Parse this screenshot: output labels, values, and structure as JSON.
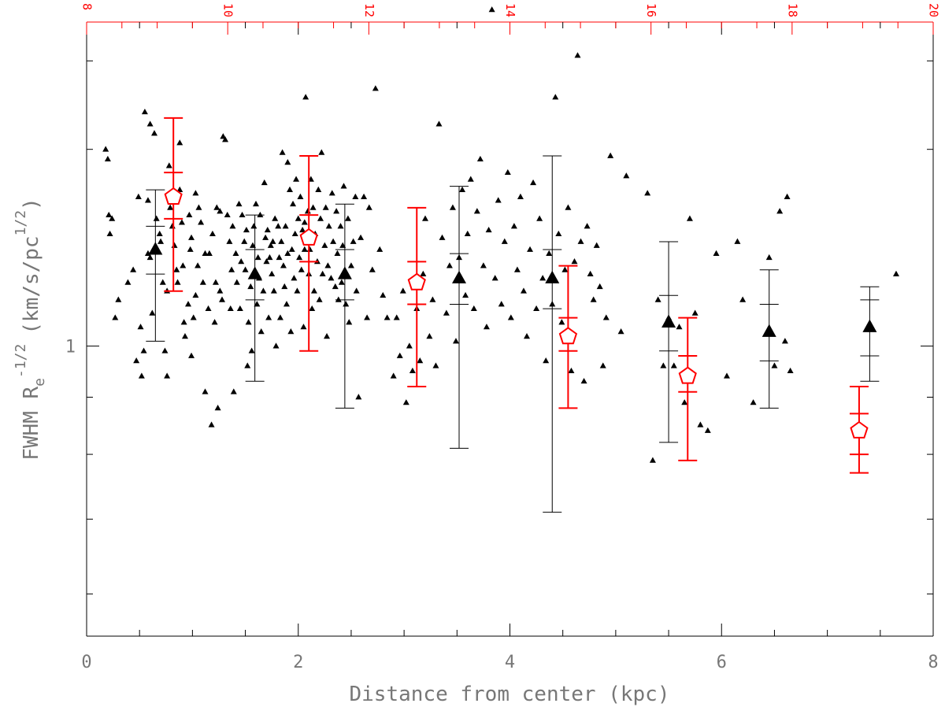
{
  "chart_data": {
    "type": "scatter",
    "xlabel": "Distance from center (kpc)",
    "ylabel": "FWHM R_e^{-1/2} (km/s/pc^{1/2})",
    "ylabel_parts": {
      "main": "FWHM R",
      "sub": "e",
      "sup1": "-1/2",
      "mid": "(km/s/pc",
      "sup2": "1/2",
      "end": ")"
    },
    "xlim": [
      0,
      8
    ],
    "ylim": [
      0.55,
      1.95
    ],
    "y_scale": "log",
    "x_ticks": [
      0,
      2,
      4,
      6,
      8
    ],
    "y_ticks": [
      1
    ],
    "top_axis": {
      "xlim": [
        8,
        20
      ],
      "ticks": [
        8,
        10,
        12,
        14,
        16,
        18,
        20
      ],
      "color": "#ff0000"
    },
    "colors": {
      "points": "#000000",
      "black_series": "#000000",
      "red_series": "#ff0000",
      "frame": "#000000",
      "text": "#777777"
    },
    "series": [
      {
        "marker": "triangle",
        "color": "#000000",
        "x": [
          0.65,
          1.59,
          2.44,
          3.52,
          4.4,
          5.5,
          6.45,
          7.4
        ],
        "y": [
          1.22,
          1.16,
          1.16,
          1.15,
          1.15,
          1.05,
          1.03,
          1.04
        ],
        "err_outer": [
          [
            1.01,
            1.38
          ],
          [
            0.93,
            1.31
          ],
          [
            0.88,
            1.34
          ],
          [
            0.81,
            1.39
          ],
          [
            0.71,
            1.48
          ],
          [
            0.82,
            1.24
          ],
          [
            0.88,
            1.17
          ],
          [
            0.93,
            1.13
          ]
        ],
        "err_inner": [
          [
            1.16,
            1.28
          ],
          [
            1.1,
            1.22
          ],
          [
            1.1,
            1.22
          ],
          [
            1.09,
            1.21
          ],
          [
            1.08,
            1.22
          ],
          [
            0.99,
            1.11
          ],
          [
            0.97,
            1.09
          ],
          [
            0.98,
            1.1
          ]
        ]
      },
      {
        "marker": "pentagon",
        "color": "#ff0000",
        "x": [
          0.82,
          2.1,
          3.12,
          4.55,
          5.68,
          7.3
        ],
        "y": [
          1.36,
          1.25,
          1.14,
          1.02,
          0.94,
          0.84
        ],
        "err_outer": [
          [
            1.12,
            1.6
          ],
          [
            0.99,
            1.48
          ],
          [
            0.92,
            1.33
          ],
          [
            0.88,
            1.18
          ],
          [
            0.79,
            1.06
          ],
          [
            0.77,
            0.92
          ]
        ],
        "err_inner": [
          [
            1.3,
            1.43
          ],
          [
            1.19,
            1.31
          ],
          [
            1.09,
            1.19
          ],
          [
            0.99,
            1.06
          ],
          [
            0.91,
            0.98
          ],
          [
            0.8,
            0.87
          ]
        ]
      }
    ],
    "points": [
      [
        0.18,
        1.5
      ],
      [
        0.2,
        1.47
      ],
      [
        0.21,
        1.31
      ],
      [
        0.22,
        1.26
      ],
      [
        0.24,
        1.3
      ],
      [
        0.27,
        1.06
      ],
      [
        0.3,
        1.1
      ],
      [
        0.39,
        1.14
      ],
      [
        0.44,
        1.17
      ],
      [
        0.47,
        0.97
      ],
      [
        0.49,
        1.36
      ],
      [
        0.51,
        1.04
      ],
      [
        0.52,
        0.94
      ],
      [
        0.54,
        0.99
      ],
      [
        0.55,
        1.62
      ],
      [
        0.58,
        1.35
      ],
      [
        0.58,
        1.21
      ],
      [
        0.6,
        1.2
      ],
      [
        0.62,
        1.07
      ],
      [
        0.6,
        1.58
      ],
      [
        0.64,
        1.55
      ],
      [
        0.66,
        1.3
      ],
      [
        0.69,
        1.26
      ],
      [
        0.7,
        1.24
      ],
      [
        0.72,
        1.14
      ],
      [
        0.74,
        0.99
      ],
      [
        0.76,
        1.12
      ],
      [
        0.76,
        0.94
      ],
      [
        0.78,
        1.45
      ],
      [
        0.79,
        1.33
      ],
      [
        0.81,
        1.28
      ],
      [
        0.83,
        1.23
      ],
      [
        0.85,
        1.17
      ],
      [
        0.86,
        1.14
      ],
      [
        0.88,
        1.38
      ],
      [
        0.88,
        1.52
      ],
      [
        0.9,
        1.29
      ],
      [
        0.91,
        1.18
      ],
      [
        0.92,
        1.05
      ],
      [
        0.93,
        1.02
      ],
      [
        0.96,
        1.09
      ],
      [
        0.97,
        1.31
      ],
      [
        0.98,
        1.22
      ],
      [
        0.99,
        1.25
      ],
      [
        0.99,
        0.98
      ],
      [
        1.01,
        1.06
      ],
      [
        1.03,
        1.11
      ],
      [
        1.03,
        1.37
      ],
      [
        1.05,
        1.18
      ],
      [
        1.06,
        1.33
      ],
      [
        1.08,
        1.29
      ],
      [
        1.1,
        1.14
      ],
      [
        1.12,
        1.21
      ],
      [
        1.12,
        0.91
      ],
      [
        1.15,
        1.08
      ],
      [
        1.16,
        1.21
      ],
      [
        1.18,
        0.85
      ],
      [
        1.19,
        1.26
      ],
      [
        1.21,
        1.05
      ],
      [
        1.22,
        1.14
      ],
      [
        1.23,
        1.33
      ],
      [
        1.24,
        0.88
      ],
      [
        1.26,
        1.12
      ],
      [
        1.26,
        1.32
      ],
      [
        1.28,
        1.1
      ],
      [
        1.29,
        1.54
      ],
      [
        1.31,
        1.53
      ],
      [
        1.33,
        1.31
      ],
      [
        1.35,
        1.24
      ],
      [
        1.36,
        1.08
      ],
      [
        1.37,
        1.17
      ],
      [
        1.38,
        1.28
      ],
      [
        1.39,
        0.91
      ],
      [
        1.41,
        1.21
      ],
      [
        1.42,
        1.14
      ],
      [
        1.44,
        1.34
      ],
      [
        1.45,
        1.08
      ],
      [
        1.46,
        1.19
      ],
      [
        1.47,
        1.31
      ],
      [
        1.49,
        1.24
      ],
      [
        1.5,
        1.17
      ],
      [
        1.51,
        1.27
      ],
      [
        1.52,
        0.96
      ],
      [
        1.53,
        1.05
      ],
      [
        1.55,
        1.13
      ],
      [
        1.56,
        0.99
      ],
      [
        1.57,
        1.23
      ],
      [
        1.58,
        1.28
      ],
      [
        1.6,
        1.34
      ],
      [
        1.61,
        1.09
      ],
      [
        1.62,
        1.2
      ],
      [
        1.63,
        1.15
      ],
      [
        1.64,
        1.31
      ],
      [
        1.65,
        1.03
      ],
      [
        1.67,
        1.12
      ],
      [
        1.68,
        1.4
      ],
      [
        1.69,
        1.25
      ],
      [
        1.7,
        1.19
      ],
      [
        1.71,
        1.27
      ],
      [
        1.72,
        1.06
      ],
      [
        1.73,
        1.2
      ],
      [
        1.74,
        1.23
      ],
      [
        1.75,
        1.16
      ],
      [
        1.76,
        1.24
      ],
      [
        1.77,
        1.12
      ],
      [
        1.78,
        1.3
      ],
      [
        1.79,
        1.0
      ],
      [
        1.81,
        1.28
      ],
      [
        1.82,
        1.2
      ],
      [
        1.83,
        1.06
      ],
      [
        1.84,
        1.24
      ],
      [
        1.85,
        1.49
      ],
      [
        1.86,
        1.18
      ],
      [
        1.87,
        1.13
      ],
      [
        1.88,
        1.28
      ],
      [
        1.89,
        1.09
      ],
      [
        1.9,
        1.21
      ],
      [
        1.9,
        1.46
      ],
      [
        1.92,
        1.38
      ],
      [
        1.93,
        1.03
      ],
      [
        1.94,
        1.22
      ],
      [
        1.95,
        1.34
      ],
      [
        1.96,
        1.15
      ],
      [
        1.97,
        1.26
      ],
      [
        1.98,
        1.41
      ],
      [
        1.99,
        1.12
      ],
      [
        2.0,
        1.3
      ],
      [
        2.01,
        1.2
      ],
      [
        2.02,
        1.36
      ],
      [
        2.03,
        1.17
      ],
      [
        2.04,
        1.27
      ],
      [
        2.05,
        1.04
      ],
      [
        2.06,
        1.29
      ],
      [
        2.06,
        1.22
      ],
      [
        2.07,
        1.67
      ],
      [
        2.09,
        1.32
      ],
      [
        2.1,
        1.16
      ],
      [
        2.11,
        1.22
      ],
      [
        2.12,
        1.41
      ],
      [
        2.13,
        1.08
      ],
      [
        2.14,
        1.33
      ],
      [
        2.15,
        1.12
      ],
      [
        2.16,
        1.26
      ],
      [
        2.18,
        1.19
      ],
      [
        2.19,
        1.38
      ],
      [
        2.2,
        1.1
      ],
      [
        2.21,
        1.3
      ],
      [
        2.22,
        1.49
      ],
      [
        2.23,
        1.16
      ],
      [
        2.25,
        1.23
      ],
      [
        2.26,
        1.33
      ],
      [
        2.27,
        1.02
      ],
      [
        2.28,
        1.18
      ],
      [
        2.29,
        1.28
      ],
      [
        2.31,
        1.15
      ],
      [
        2.32,
        1.37
      ],
      [
        2.33,
        1.24
      ],
      [
        2.35,
        1.13
      ],
      [
        2.36,
        1.32
      ],
      [
        2.37,
        1.21
      ],
      [
        2.38,
        1.1
      ],
      [
        2.4,
        1.28
      ],
      [
        2.41,
        1.14
      ],
      [
        2.42,
        1.23
      ],
      [
        2.43,
        1.39
      ],
      [
        2.45,
        1.09
      ],
      [
        2.47,
        1.3
      ],
      [
        2.48,
        1.05
      ],
      [
        2.5,
        1.18
      ],
      [
        2.52,
        1.24
      ],
      [
        2.54,
        1.36
      ],
      [
        2.55,
        1.12
      ],
      [
        2.57,
        0.9
      ],
      [
        2.59,
        1.25
      ],
      [
        2.62,
        1.36
      ],
      [
        2.65,
        1.06
      ],
      [
        2.67,
        1.33
      ],
      [
        2.7,
        1.17
      ],
      [
        2.73,
        1.7
      ],
      [
        2.77,
        1.22
      ],
      [
        2.8,
        1.11
      ],
      [
        2.84,
        1.06
      ],
      [
        2.9,
        0.94
      ],
      [
        2.93,
        1.06
      ],
      [
        2.96,
        0.98
      ],
      [
        2.99,
        1.12
      ],
      [
        3.02,
        0.89
      ],
      [
        3.05,
        1.0
      ],
      [
        3.08,
        0.95
      ],
      [
        3.12,
        1.08
      ],
      [
        3.15,
        0.97
      ],
      [
        3.18,
        1.16
      ],
      [
        3.2,
        1.3
      ],
      [
        3.24,
        1.02
      ],
      [
        3.27,
        1.1
      ],
      [
        3.3,
        0.96
      ],
      [
        3.33,
        1.58
      ],
      [
        3.36,
        1.25
      ],
      [
        3.4,
        1.07
      ],
      [
        3.43,
        1.18
      ],
      [
        3.46,
        1.33
      ],
      [
        3.49,
        1.01
      ],
      [
        3.52,
        1.2
      ],
      [
        3.55,
        1.38
      ],
      [
        3.58,
        1.11
      ],
      [
        3.6,
        1.26
      ],
      [
        3.63,
        1.41
      ],
      [
        3.66,
        1.08
      ],
      [
        3.69,
        1.32
      ],
      [
        3.72,
        1.47
      ],
      [
        3.75,
        1.18
      ],
      [
        3.78,
        1.04
      ],
      [
        3.8,
        1.27
      ],
      [
        3.83,
        2.0
      ],
      [
        3.86,
        1.15
      ],
      [
        3.89,
        1.35
      ],
      [
        3.92,
        1.09
      ],
      [
        3.95,
        1.24
      ],
      [
        3.98,
        1.43
      ],
      [
        4.01,
        1.06
      ],
      [
        4.04,
        1.28
      ],
      [
        4.07,
        1.17
      ],
      [
        4.1,
        1.36
      ],
      [
        4.13,
        1.12
      ],
      [
        4.16,
        1.02
      ],
      [
        4.19,
        1.22
      ],
      [
        4.22,
        1.4
      ],
      [
        4.25,
        1.08
      ],
      [
        4.28,
        1.3
      ],
      [
        4.31,
        1.15
      ],
      [
        4.34,
        0.97
      ],
      [
        4.37,
        1.21
      ],
      [
        4.4,
        1.09
      ],
      [
        4.43,
        1.67
      ],
      [
        4.46,
        1.26
      ],
      [
        4.49,
        1.05
      ],
      [
        4.52,
        1.17
      ],
      [
        4.55,
        1.33
      ],
      [
        4.58,
        0.95
      ],
      [
        4.61,
        1.19
      ],
      [
        4.64,
        1.82
      ],
      [
        4.67,
        1.24
      ],
      [
        4.7,
        0.93
      ],
      [
        4.73,
        1.28
      ],
      [
        4.76,
        1.16
      ],
      [
        4.79,
        1.1
      ],
      [
        4.82,
        1.23
      ],
      [
        4.85,
        1.13
      ],
      [
        4.88,
        0.96
      ],
      [
        4.91,
        1.06
      ],
      [
        4.95,
        1.48
      ],
      [
        5.05,
        1.03
      ],
      [
        5.1,
        1.42
      ],
      [
        5.3,
        1.37
      ],
      [
        5.35,
        0.79
      ],
      [
        5.4,
        1.1
      ],
      [
        5.45,
        0.96
      ],
      [
        5.5,
        1.06
      ],
      [
        5.55,
        0.96
      ],
      [
        5.6,
        1.04
      ],
      [
        5.65,
        0.89
      ],
      [
        5.7,
        1.3
      ],
      [
        5.75,
        1.07
      ],
      [
        5.8,
        0.85
      ],
      [
        5.87,
        0.84
      ],
      [
        5.95,
        1.21
      ],
      [
        6.05,
        0.94
      ],
      [
        6.15,
        1.24
      ],
      [
        6.2,
        1.1
      ],
      [
        6.3,
        0.89
      ],
      [
        6.45,
        1.2
      ],
      [
        6.5,
        0.96
      ],
      [
        6.55,
        1.32
      ],
      [
        6.6,
        1.01
      ],
      [
        6.62,
        1.36
      ],
      [
        6.65,
        0.95
      ],
      [
        7.65,
        1.16
      ]
    ]
  }
}
